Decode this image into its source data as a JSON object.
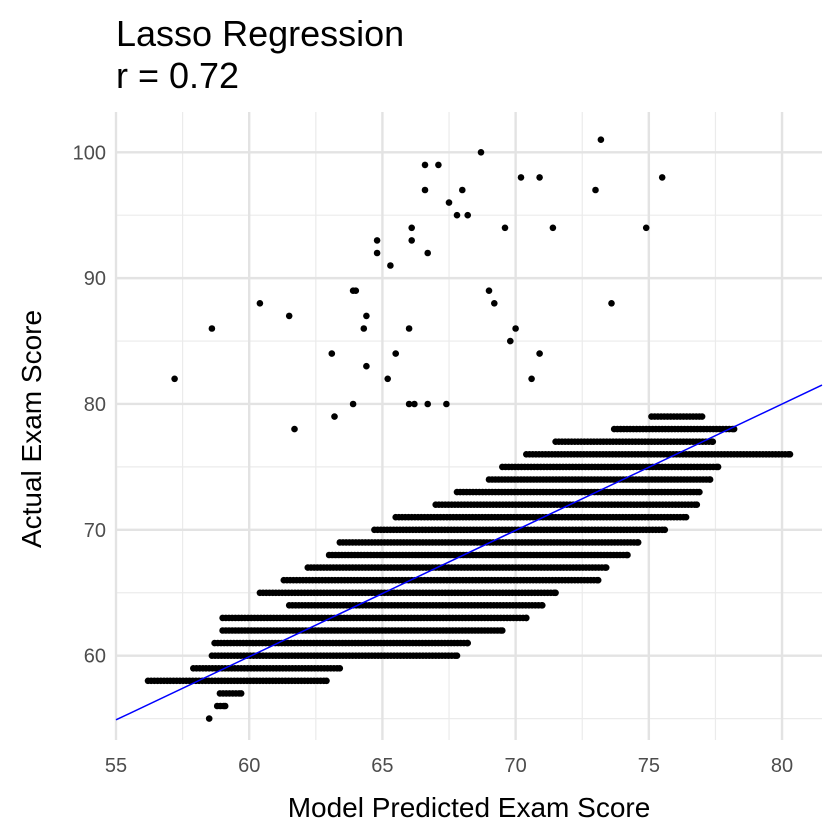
{
  "chart_data": {
    "type": "scatter",
    "title": "Lasso Regression",
    "subtitle": "r = 0.72",
    "xlabel": "Model Predicted Exam Score",
    "ylabel": "Actual Exam Score",
    "xlim": [
      55,
      81.5
    ],
    "ylim": [
      53.3,
      103.2
    ],
    "x_ticks": [
      55,
      60,
      65,
      70,
      75,
      80
    ],
    "y_ticks": [
      60,
      70,
      80,
      90,
      100
    ],
    "grid": true,
    "point_color": "#000000",
    "line_color": "#0000ff",
    "fit_line": {
      "x": [
        55,
        81.5
      ],
      "y": [
        54.9,
        81.5
      ]
    },
    "outliers": [
      {
        "x": 73.2,
        "y": 101
      },
      {
        "x": 68.7,
        "y": 100
      },
      {
        "x": 66.6,
        "y": 99
      },
      {
        "x": 67.1,
        "y": 99
      },
      {
        "x": 70.2,
        "y": 98
      },
      {
        "x": 70.9,
        "y": 98
      },
      {
        "x": 75.5,
        "y": 98
      },
      {
        "x": 66.6,
        "y": 97
      },
      {
        "x": 68.0,
        "y": 97
      },
      {
        "x": 73.0,
        "y": 97
      },
      {
        "x": 67.5,
        "y": 96
      },
      {
        "x": 67.8,
        "y": 95
      },
      {
        "x": 68.2,
        "y": 95
      },
      {
        "x": 66.1,
        "y": 94
      },
      {
        "x": 69.6,
        "y": 94
      },
      {
        "x": 71.4,
        "y": 94
      },
      {
        "x": 74.9,
        "y": 94
      },
      {
        "x": 64.8,
        "y": 93
      },
      {
        "x": 66.1,
        "y": 93
      },
      {
        "x": 64.8,
        "y": 92
      },
      {
        "x": 66.7,
        "y": 92
      },
      {
        "x": 65.3,
        "y": 91
      },
      {
        "x": 63.9,
        "y": 89
      },
      {
        "x": 64.0,
        "y": 89
      },
      {
        "x": 69.0,
        "y": 89
      },
      {
        "x": 60.4,
        "y": 88
      },
      {
        "x": 69.2,
        "y": 88
      },
      {
        "x": 73.6,
        "y": 88
      },
      {
        "x": 61.5,
        "y": 87
      },
      {
        "x": 64.4,
        "y": 87
      },
      {
        "x": 58.6,
        "y": 86
      },
      {
        "x": 64.3,
        "y": 86
      },
      {
        "x": 66.0,
        "y": 86
      },
      {
        "x": 70.0,
        "y": 86
      },
      {
        "x": 69.8,
        "y": 85
      },
      {
        "x": 63.1,
        "y": 84
      },
      {
        "x": 65.5,
        "y": 84
      },
      {
        "x": 70.9,
        "y": 84
      },
      {
        "x": 64.4,
        "y": 83
      },
      {
        "x": 57.2,
        "y": 82
      },
      {
        "x": 65.2,
        "y": 82
      },
      {
        "x": 70.6,
        "y": 82
      },
      {
        "x": 63.9,
        "y": 80
      },
      {
        "x": 66.0,
        "y": 80
      },
      {
        "x": 66.2,
        "y": 80
      },
      {
        "x": 66.7,
        "y": 80
      },
      {
        "x": 67.4,
        "y": 80
      },
      {
        "x": 63.2,
        "y": 79
      },
      {
        "x": 61.7,
        "y": 78
      }
    ],
    "main_cluster": {
      "y_values": [
        55,
        56,
        57,
        58,
        59,
        60,
        61,
        62,
        63,
        64,
        65,
        66,
        67,
        68,
        69,
        70,
        71,
        72,
        73,
        74,
        75,
        76,
        77,
        78,
        79
      ],
      "x_ranges": [
        [
          58.5,
          58.5
        ],
        [
          58.8,
          59.1
        ],
        [
          58.9,
          59.7
        ],
        [
          56.2,
          62.9
        ],
        [
          57.9,
          63.4
        ],
        [
          58.6,
          67.8
        ],
        [
          58.7,
          68.2
        ],
        [
          59.0,
          69.5
        ],
        [
          59.0,
          70.4
        ],
        [
          61.5,
          71.0
        ],
        [
          60.4,
          71.5
        ],
        [
          61.3,
          73.1
        ],
        [
          62.2,
          73.4
        ],
        [
          63.0,
          74.2
        ],
        [
          63.4,
          74.6
        ],
        [
          64.7,
          75.6
        ],
        [
          65.5,
          76.4
        ],
        [
          67.0,
          76.8
        ],
        [
          67.8,
          76.9
        ],
        [
          69.0,
          77.3
        ],
        [
          69.5,
          77.6
        ],
        [
          70.4,
          80.3
        ],
        [
          71.5,
          77.4
        ],
        [
          73.7,
          78.2
        ],
        [
          75.1,
          77.0
        ]
      ],
      "step": 0.12
    }
  }
}
